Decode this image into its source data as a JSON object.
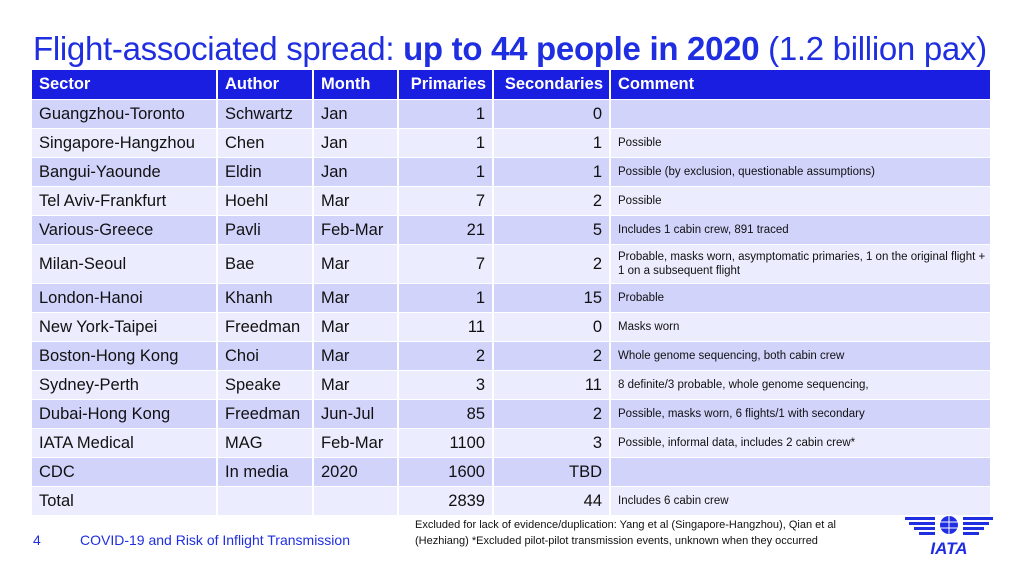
{
  "title": {
    "part1": "Flight-associated spread: ",
    "part2": "up to 44 people in 2020",
    "part3": " (1.2 billion pax)"
  },
  "table": {
    "headers": {
      "sector": "Sector",
      "author": "Author",
      "month": "Month",
      "primaries": "Primaries",
      "secondaries": "Secondaries",
      "comment": "Comment"
    },
    "rows": [
      {
        "sector": "Guangzhou-Toronto",
        "author": "Schwartz",
        "month": "Jan",
        "primaries": "1",
        "secondaries": "0",
        "comment": ""
      },
      {
        "sector": "Singapore-Hangzhou",
        "author": "Chen",
        "month": "Jan",
        "primaries": "1",
        "secondaries": "1",
        "comment": "Possible"
      },
      {
        "sector": "Bangui-Yaounde",
        "author": "Eldin",
        "month": "Jan",
        "primaries": "1",
        "secondaries": "1",
        "comment": "Possible (by exclusion, questionable assumptions)"
      },
      {
        "sector": "Tel Aviv-Frankfurt",
        "author": "Hoehl",
        "month": "Mar",
        "primaries": "7",
        "secondaries": "2",
        "comment": "Possible"
      },
      {
        "sector": "Various-Greece",
        "author": "Pavli",
        "month": "Feb-Mar",
        "primaries": "21",
        "secondaries": "5",
        "comment": "Includes 1 cabin crew, 891 traced"
      },
      {
        "sector": "Milan-Seoul",
        "author": "Bae",
        "month": "Mar",
        "primaries": "7",
        "secondaries": "2",
        "comment": "Probable, masks worn, asymptomatic primaries, 1 on the original flight + 1 on a subsequent flight"
      },
      {
        "sector": "London-Hanoi",
        "author": "Khanh",
        "month": "Mar",
        "primaries": "1",
        "secondaries": "15",
        "comment": "Probable"
      },
      {
        "sector": "New York-Taipei",
        "author": "Freedman",
        "month": "Mar",
        "primaries": "11",
        "secondaries": "0",
        "comment": "Masks worn"
      },
      {
        "sector": "Boston-Hong Kong",
        "author": "Choi",
        "month": "Mar",
        "primaries": "2",
        "secondaries": "2",
        "comment": "Whole genome sequencing, both cabin crew"
      },
      {
        "sector": "Sydney-Perth",
        "author": "Speake",
        "month": "Mar",
        "primaries": "3",
        "secondaries": "11",
        "comment": "8 definite/3 probable, whole genome sequencing,"
      },
      {
        "sector": "Dubai-Hong Kong",
        "author": "Freedman",
        "month": "Jun-Jul",
        "primaries": "85",
        "secondaries": "2",
        "comment": "Possible, masks worn, 6 flights/1 with secondary"
      },
      {
        "sector": "IATA Medical",
        "author": "MAG",
        "month": "Feb-Mar",
        "primaries": "1100",
        "secondaries": "3",
        "comment": "Possible, informal data, includes 2 cabin crew*"
      },
      {
        "sector": "CDC",
        "author": "In media",
        "month": "2020",
        "primaries": "1600",
        "secondaries": "TBD",
        "comment": ""
      },
      {
        "sector": "Total",
        "author": "",
        "month": "",
        "primaries": "2839",
        "secondaries": "44",
        "comment": "Includes 6 cabin crew"
      }
    ]
  },
  "footer": {
    "page_number": "4",
    "text": "COVID-19 and Risk of Inflight Transmission",
    "note": "Excluded for lack of evidence/duplication:  Yang et al (Singapore-Hangzhou), Qian et al (Hezhiang)  *Excluded pilot-pilot transmission events, unknown when they occurred",
    "logo_text": "IATA"
  },
  "colors": {
    "accent": "#1f2ee0",
    "header_bg": "#1a1ee0",
    "row_dark": "#d1d3fb",
    "row_light": "#ebecfd"
  }
}
